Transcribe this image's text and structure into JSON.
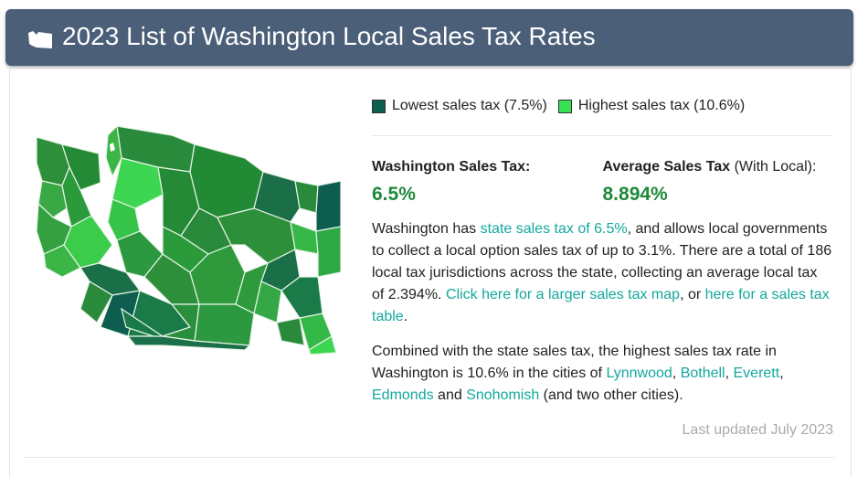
{
  "header": {
    "title": "2023 List of Washington Local Sales Tax Rates"
  },
  "legend": [
    "Lowest sales tax (7.5%)",
    "Highest sales tax (10.6%)"
  ],
  "stats": [
    {
      "label": "Washington Sales Tax:",
      "value": "6.5%"
    },
    {
      "label": "Average Sales Tax",
      "qualifier": "(With Local):",
      "value": "8.894%"
    }
  ],
  "paragraphs": [
    [
      "Washington has ",
      "state sales tax of 6.5%",
      ", and allows local governments to collect a local option sales tax of up to 3.1%. There are a total of 186 local tax jurisdictions across the state, collecting an average local tax of 2.394%. ",
      "Click here for a larger sales tax map",
      ", or ",
      "here for a sales tax table",
      "."
    ],
    [
      "Combined with the state sales tax, the highest sales tax rate in Washington is 10.6% in the cities of ",
      "Lynnwood",
      ", ",
      "Bothell",
      ", ",
      "Everett",
      ", ",
      "Edmonds",
      " and ",
      "Snohomish",
      " (and two other cities)."
    ]
  ],
  "footer": "Last updated July 2023"
}
